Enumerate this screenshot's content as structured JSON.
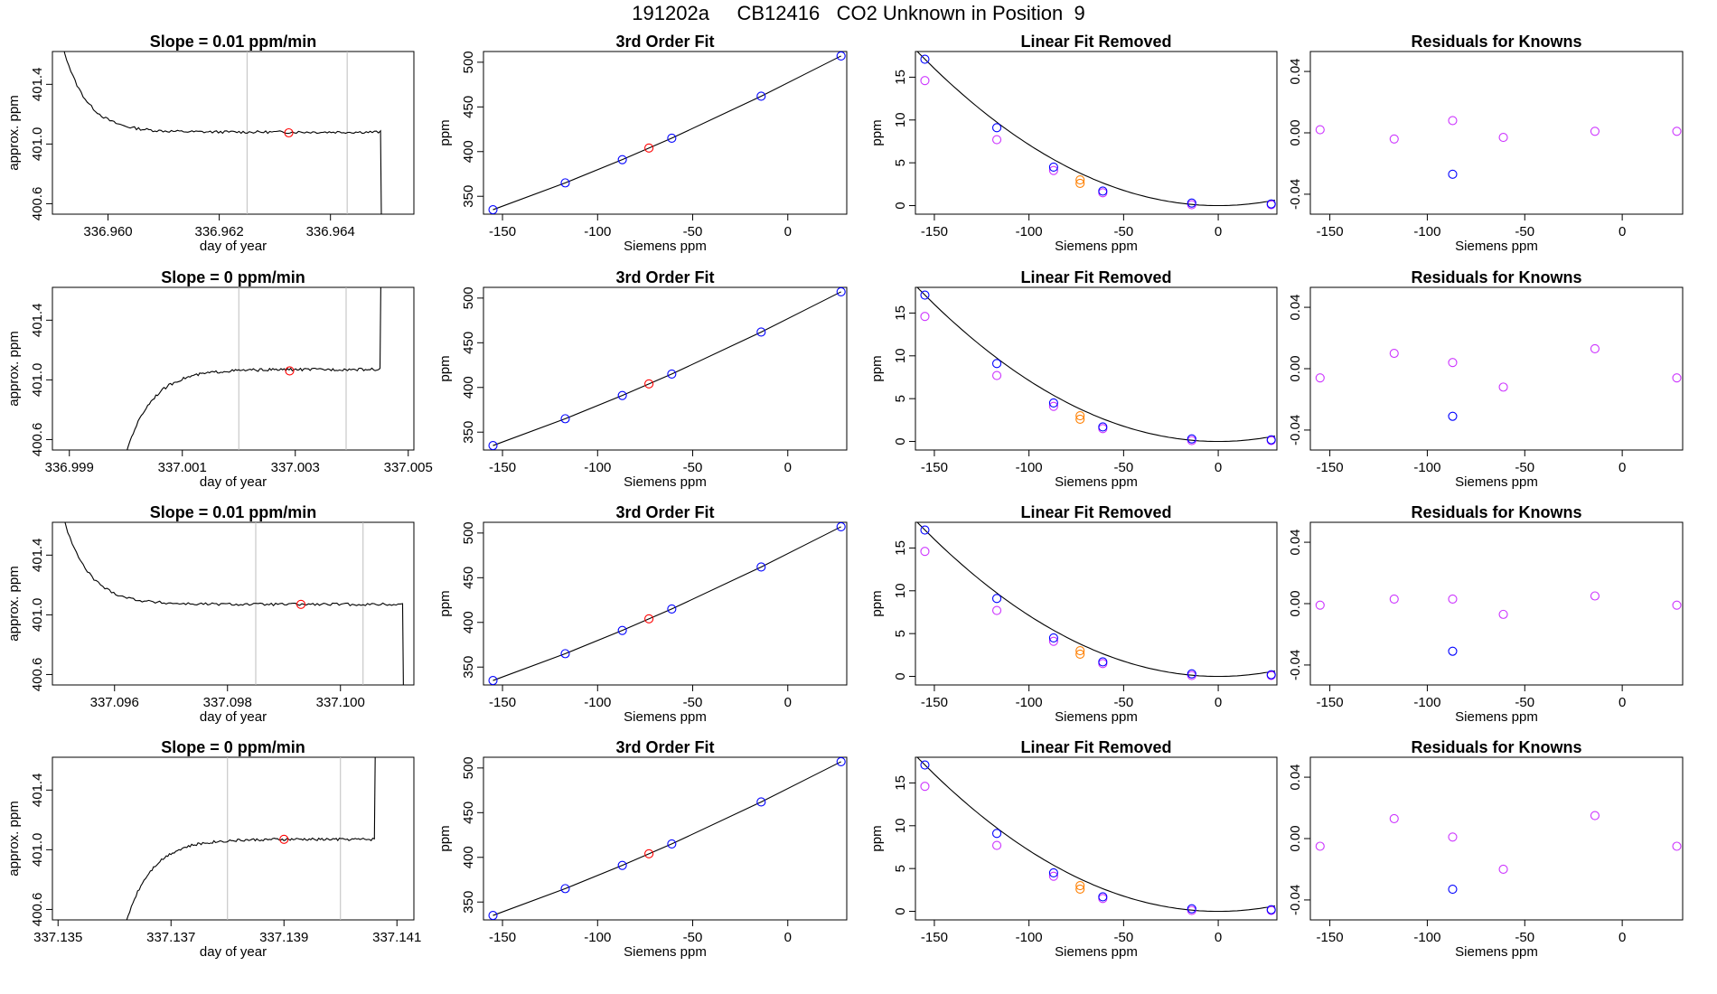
{
  "page": {
    "title": "191202a     CB12416   CO2 Unknown in Position  9"
  },
  "colors": {
    "known": "#0000ff",
    "unknown": "#ff0000",
    "known_linear": "#cc33ff",
    "unknown_linear": "#ff7f00",
    "line": "#000000",
    "vline": "#bebebe"
  },
  "chart_data": [
    {
      "type": "line",
      "panel": "timeseries",
      "row": 1,
      "title": "Slope =  0.01  ppm/min",
      "xlabel": "day of year",
      "ylabel": "approx. ppm",
      "xlim": [
        336.959,
        336.9655
      ],
      "ylim": [
        400.53,
        401.62
      ],
      "xticks": [
        336.96,
        336.962,
        336.964
      ],
      "xtick_labels": [
        "336.960",
        "336.962",
        "336.964"
      ],
      "yticks": [
        400.6,
        401.0,
        401.4
      ],
      "ytick_labels": [
        "400.6",
        "401.0",
        "401.4"
      ],
      "vlines": [
        336.9625,
        336.9643
      ],
      "mean_point": [
        336.96325,
        401.075
      ],
      "shape": "decay",
      "start": 336.959,
      "end": 336.9649,
      "plateau": 401.08
    },
    {
      "type": "scatter",
      "panel": "fit",
      "row": 1,
      "title": "3rd Order Fit",
      "xlabel": "Siemens ppm",
      "ylabel": "ppm",
      "xlim": [
        -160,
        31
      ],
      "ylim": [
        330,
        512
      ],
      "xticks": [
        -150,
        -100,
        -50,
        0
      ],
      "xtick_labels": [
        "-150",
        "-100",
        "-50",
        "0"
      ],
      "yticks": [
        350,
        400,
        450,
        500
      ],
      "ytick_labels": [
        "350",
        "400",
        "450",
        "500"
      ],
      "knowns": [
        [
          -155,
          335
        ],
        [
          -117,
          365
        ],
        [
          -87,
          391
        ],
        [
          -61,
          415
        ],
        [
          -14,
          462
        ],
        [
          28,
          507
        ]
      ],
      "unknowns": [
        [
          -73,
          404
        ]
      ]
    },
    {
      "type": "scatter",
      "panel": "linear",
      "row": 1,
      "title": "Linear Fit Removed",
      "xlabel": "Siemens ppm",
      "ylabel": "ppm",
      "xlim": [
        -160,
        31
      ],
      "ylim": [
        -1,
        18
      ],
      "xticks": [
        -150,
        -100,
        -50,
        0
      ],
      "xtick_labels": [
        "-150",
        "-100",
        "-50",
        "0"
      ],
      "yticks": [
        0,
        5,
        10,
        15
      ],
      "ytick_labels": [
        "0",
        "5",
        "10",
        "15"
      ],
      "knowns": [
        [
          -155,
          17.1
        ],
        [
          -117,
          9.1
        ],
        [
          -87,
          4.5
        ],
        [
          -61,
          1.7
        ],
        [
          -14,
          0.3
        ],
        [
          28,
          0.2
        ]
      ],
      "knowns_lin": [
        [
          -155,
          14.6
        ],
        [
          -117,
          7.7
        ],
        [
          -87,
          4.1
        ],
        [
          -61,
          1.5
        ],
        [
          -14,
          0.1
        ],
        [
          28,
          0.1
        ]
      ],
      "unknowns": [
        [
          -73,
          3.0
        ]
      ],
      "unknowns_lin": [
        [
          -73,
          2.6
        ]
      ]
    },
    {
      "type": "scatter",
      "panel": "residual",
      "row": 1,
      "title": "Residuals for Knowns",
      "xlabel": "Siemens ppm",
      "ylabel": "",
      "xlim": [
        -160,
        31
      ],
      "ylim": [
        -0.053,
        0.053
      ],
      "xticks": [
        -150,
        -100,
        -50,
        0
      ],
      "xtick_labels": [
        "-150",
        "-100",
        "-50",
        "0"
      ],
      "yticks": [
        -0.04,
        0.0,
        0.04
      ],
      "ytick_labels": [
        "-0.04",
        "0.00",
        "0.04"
      ],
      "points": [
        [
          -155,
          0.002
        ],
        [
          -117,
          -0.004
        ],
        [
          -87,
          0.008
        ],
        [
          -61,
          -0.003
        ],
        [
          -14,
          0.001
        ],
        [
          28,
          0.001
        ]
      ],
      "known_points": [
        [
          -87,
          -0.027
        ]
      ]
    },
    {
      "type": "line",
      "panel": "timeseries",
      "row": 2,
      "title": "Slope =  0  ppm/min",
      "xlabel": "day of year",
      "ylabel": "approx. ppm",
      "xlim": [
        336.9987,
        337.0051
      ],
      "ylim": [
        400.53,
        401.62
      ],
      "xticks": [
        336.999,
        337.001,
        337.003,
        337.005
      ],
      "xtick_labels": [
        "336.999",
        "337.001",
        "337.003",
        "337.005"
      ],
      "yticks": [
        400.6,
        401.0,
        401.4
      ],
      "ytick_labels": [
        "400.6",
        "401.0",
        "401.4"
      ],
      "vlines": [
        337.002,
        337.0039
      ],
      "mean_point": [
        337.0029,
        401.06
      ],
      "shape": "rise",
      "start": 336.9999,
      "end": 337.0045,
      "plateau": 401.07
    },
    {
      "type": "scatter",
      "panel": "fit",
      "row": 2,
      "title": "3rd Order Fit",
      "xlabel": "Siemens ppm",
      "ylabel": "ppm",
      "xlim": [
        -160,
        31
      ],
      "ylim": [
        330,
        512
      ],
      "xticks": [
        -150,
        -100,
        -50,
        0
      ],
      "xtick_labels": [
        "-150",
        "-100",
        "-50",
        "0"
      ],
      "yticks": [
        350,
        400,
        450,
        500
      ],
      "ytick_labels": [
        "350",
        "400",
        "450",
        "500"
      ],
      "knowns": [
        [
          -155,
          335
        ],
        [
          -117,
          365
        ],
        [
          -87,
          391
        ],
        [
          -61,
          415
        ],
        [
          -14,
          462
        ],
        [
          28,
          507
        ]
      ],
      "unknowns": [
        [
          -73,
          404
        ]
      ]
    },
    {
      "type": "scatter",
      "panel": "linear",
      "row": 2,
      "title": "Linear Fit Removed",
      "xlabel": "Siemens ppm",
      "ylabel": "ppm",
      "xlim": [
        -160,
        31
      ],
      "ylim": [
        -1,
        18
      ],
      "xticks": [
        -150,
        -100,
        -50,
        0
      ],
      "xtick_labels": [
        "-150",
        "-100",
        "-50",
        "0"
      ],
      "yticks": [
        0,
        5,
        10,
        15
      ],
      "ytick_labels": [
        "0",
        "5",
        "10",
        "15"
      ],
      "knowns": [
        [
          -155,
          17.1
        ],
        [
          -117,
          9.1
        ],
        [
          -87,
          4.5
        ],
        [
          -61,
          1.7
        ],
        [
          -14,
          0.3
        ],
        [
          28,
          0.2
        ]
      ],
      "knowns_lin": [
        [
          -155,
          14.6
        ],
        [
          -117,
          7.7
        ],
        [
          -87,
          4.1
        ],
        [
          -61,
          1.5
        ],
        [
          -14,
          0.1
        ],
        [
          28,
          0.1
        ]
      ],
      "unknowns": [
        [
          -73,
          3.0
        ]
      ],
      "unknowns_lin": [
        [
          -73,
          2.6
        ]
      ]
    },
    {
      "type": "scatter",
      "panel": "residual",
      "row": 2,
      "title": "Residuals for Knowns",
      "xlabel": "Siemens ppm",
      "ylabel": "",
      "xlim": [
        -160,
        31
      ],
      "ylim": [
        -0.053,
        0.053
      ],
      "xticks": [
        -150,
        -100,
        -50,
        0
      ],
      "xtick_labels": [
        "-150",
        "-100",
        "-50",
        "0"
      ],
      "yticks": [
        -0.04,
        0.0,
        0.04
      ],
      "ytick_labels": [
        "-0.04",
        "0.00",
        "0.04"
      ],
      "points": [
        [
          -155,
          -0.006
        ],
        [
          -117,
          0.01
        ],
        [
          -87,
          0.004
        ],
        [
          -61,
          -0.012
        ],
        [
          -14,
          0.013
        ],
        [
          28,
          -0.006
        ]
      ],
      "known_points": [
        [
          -87,
          -0.031
        ]
      ]
    },
    {
      "type": "line",
      "panel": "timeseries",
      "row": 3,
      "title": "Slope =  0.01  ppm/min",
      "xlabel": "day of year",
      "ylabel": "approx. ppm",
      "xlim": [
        337.0949,
        337.1013
      ],
      "ylim": [
        400.53,
        401.62
      ],
      "xticks": [
        337.096,
        337.098,
        337.1
      ],
      "xtick_labels": [
        "337.096",
        "337.098",
        "337.100"
      ],
      "yticks": [
        400.6,
        401.0,
        401.4
      ],
      "ytick_labels": [
        "400.6",
        "401.0",
        "401.4"
      ],
      "vlines": [
        337.0985,
        337.1004
      ],
      "mean_point": [
        337.0993,
        401.07
      ],
      "shape": "decay",
      "start": 337.0949,
      "end": 337.1011,
      "plateau": 401.07
    },
    {
      "type": "scatter",
      "panel": "fit",
      "row": 3,
      "title": "3rd Order Fit",
      "xlabel": "Siemens ppm",
      "ylabel": "ppm",
      "xlim": [
        -160,
        31
      ],
      "ylim": [
        330,
        512
      ],
      "xticks": [
        -150,
        -100,
        -50,
        0
      ],
      "xtick_labels": [
        "-150",
        "-100",
        "-50",
        "0"
      ],
      "yticks": [
        350,
        400,
        450,
        500
      ],
      "ytick_labels": [
        "350",
        "400",
        "450",
        "500"
      ],
      "knowns": [
        [
          -155,
          335
        ],
        [
          -117,
          365
        ],
        [
          -87,
          391
        ],
        [
          -61,
          415
        ],
        [
          -14,
          462
        ],
        [
          28,
          507
        ]
      ],
      "unknowns": [
        [
          -73,
          404
        ]
      ]
    },
    {
      "type": "scatter",
      "panel": "linear",
      "row": 3,
      "title": "Linear Fit Removed",
      "xlabel": "Siemens ppm",
      "ylabel": "ppm",
      "xlim": [
        -160,
        31
      ],
      "ylim": [
        -1,
        18
      ],
      "xticks": [
        -150,
        -100,
        -50,
        0
      ],
      "xtick_labels": [
        "-150",
        "-100",
        "-50",
        "0"
      ],
      "yticks": [
        0,
        5,
        10,
        15
      ],
      "ytick_labels": [
        "0",
        "5",
        "10",
        "15"
      ],
      "knowns": [
        [
          -155,
          17.1
        ],
        [
          -117,
          9.1
        ],
        [
          -87,
          4.5
        ],
        [
          -61,
          1.7
        ],
        [
          -14,
          0.3
        ],
        [
          28,
          0.2
        ]
      ],
      "knowns_lin": [
        [
          -155,
          14.6
        ],
        [
          -117,
          7.7
        ],
        [
          -87,
          4.1
        ],
        [
          -61,
          1.5
        ],
        [
          -14,
          0.1
        ],
        [
          28,
          0.1
        ]
      ],
      "unknowns": [
        [
          -73,
          3.0
        ]
      ],
      "unknowns_lin": [
        [
          -73,
          2.6
        ]
      ]
    },
    {
      "type": "scatter",
      "panel": "residual",
      "row": 3,
      "title": "Residuals for Knowns",
      "xlabel": "Siemens ppm",
      "ylabel": "",
      "xlim": [
        -160,
        31
      ],
      "ylim": [
        -0.053,
        0.053
      ],
      "xticks": [
        -150,
        -100,
        -50,
        0
      ],
      "xtick_labels": [
        "-150",
        "-100",
        "-50",
        "0"
      ],
      "yticks": [
        -0.04,
        0.0,
        0.04
      ],
      "ytick_labels": [
        "-0.04",
        "0.00",
        "0.04"
      ],
      "points": [
        [
          -155,
          -0.001
        ],
        [
          -117,
          0.003
        ],
        [
          -87,
          0.003
        ],
        [
          -61,
          -0.007
        ],
        [
          -14,
          0.005
        ],
        [
          28,
          -0.001
        ]
      ],
      "known_points": [
        [
          -87,
          -0.031
        ]
      ]
    },
    {
      "type": "line",
      "panel": "timeseries",
      "row": 4,
      "title": "Slope =  0  ppm/min",
      "xlabel": "day of year",
      "ylabel": "approx. ppm",
      "xlim": [
        337.1349,
        337.1413
      ],
      "ylim": [
        400.53,
        401.62
      ],
      "xticks": [
        337.135,
        337.137,
        337.139,
        337.141
      ],
      "xtick_labels": [
        "337.135",
        "337.137",
        "337.139",
        "337.141"
      ],
      "yticks": [
        400.6,
        401.0,
        401.4
      ],
      "ytick_labels": [
        "400.6",
        "401.0",
        "401.4"
      ],
      "vlines": [
        337.138,
        337.14
      ],
      "mean_point": [
        337.139,
        401.07
      ],
      "shape": "rise",
      "start": 337.1361,
      "end": 337.1406,
      "plateau": 401.07
    },
    {
      "type": "scatter",
      "panel": "fit",
      "row": 4,
      "title": "3rd Order Fit",
      "xlabel": "Siemens ppm",
      "ylabel": "ppm",
      "xlim": [
        -160,
        31
      ],
      "ylim": [
        330,
        512
      ],
      "xticks": [
        -150,
        -100,
        -50,
        0
      ],
      "xtick_labels": [
        "-150",
        "-100",
        "-50",
        "0"
      ],
      "yticks": [
        350,
        400,
        450,
        500
      ],
      "ytick_labels": [
        "350",
        "400",
        "450",
        "500"
      ],
      "knowns": [
        [
          -155,
          335
        ],
        [
          -117,
          365
        ],
        [
          -87,
          391
        ],
        [
          -61,
          415
        ],
        [
          -14,
          462
        ],
        [
          28,
          507
        ]
      ],
      "unknowns": [
        [
          -73,
          404
        ]
      ]
    },
    {
      "type": "scatter",
      "panel": "linear",
      "row": 4,
      "title": "Linear Fit Removed",
      "xlabel": "Siemens ppm",
      "ylabel": "ppm",
      "xlim": [
        -160,
        31
      ],
      "ylim": [
        -1,
        18
      ],
      "xticks": [
        -150,
        -100,
        -50,
        0
      ],
      "xtick_labels": [
        "-150",
        "-100",
        "-50",
        "0"
      ],
      "yticks": [
        0,
        5,
        10,
        15
      ],
      "ytick_labels": [
        "0",
        "5",
        "10",
        "15"
      ],
      "knowns": [
        [
          -155,
          17.1
        ],
        [
          -117,
          9.1
        ],
        [
          -87,
          4.5
        ],
        [
          -61,
          1.7
        ],
        [
          -14,
          0.3
        ],
        [
          28,
          0.2
        ]
      ],
      "knowns_lin": [
        [
          -155,
          14.6
        ],
        [
          -117,
          7.7
        ],
        [
          -87,
          4.1
        ],
        [
          -61,
          1.5
        ],
        [
          -14,
          0.1
        ],
        [
          28,
          0.1
        ]
      ],
      "unknowns": [
        [
          -73,
          3.0
        ]
      ],
      "unknowns_lin": [
        [
          -73,
          2.6
        ]
      ]
    },
    {
      "type": "scatter",
      "panel": "residual",
      "row": 4,
      "title": "Residuals for Knowns",
      "xlabel": "Siemens ppm",
      "ylabel": "",
      "xlim": [
        -160,
        31
      ],
      "ylim": [
        -0.053,
        0.053
      ],
      "xticks": [
        -150,
        -100,
        -50,
        0
      ],
      "xtick_labels": [
        "-150",
        "-100",
        "-50",
        "0"
      ],
      "yticks": [
        -0.04,
        0.0,
        0.04
      ],
      "ytick_labels": [
        "-0.04",
        "0.00",
        "0.04"
      ],
      "points": [
        [
          -155,
          -0.005
        ],
        [
          -117,
          0.013
        ],
        [
          -87,
          0.001
        ],
        [
          -61,
          -0.02
        ],
        [
          -14,
          0.015
        ],
        [
          28,
          -0.005
        ]
      ],
      "known_points": [
        [
          -87,
          -0.033
        ]
      ]
    }
  ]
}
